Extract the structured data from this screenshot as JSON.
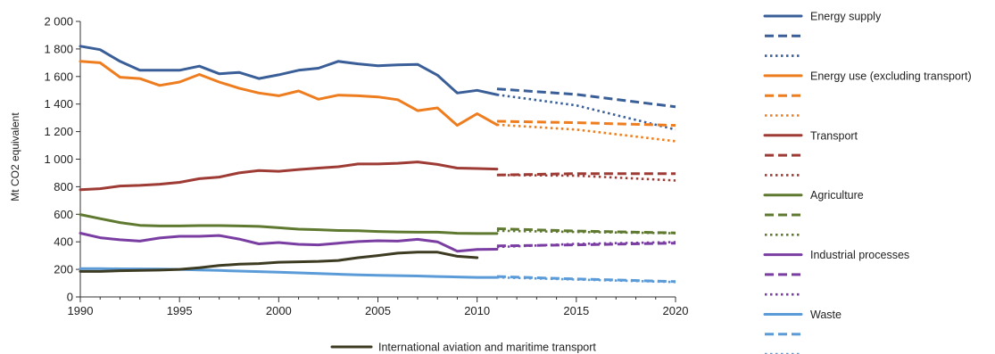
{
  "chart_data": {
    "type": "line",
    "title": "",
    "xlabel": "",
    "ylabel": "Mt CO2 equivalent",
    "xlim": [
      1990,
      2020
    ],
    "ylim": [
      0,
      2000
    ],
    "x_ticks": [
      "1990",
      "1995",
      "2000",
      "2005",
      "2010",
      "2015",
      "2020"
    ],
    "y_ticks": [
      "0",
      "200",
      "400",
      "600",
      "800",
      "1 000",
      "1 200",
      "1 400",
      "1 600",
      "1 800",
      "2 000"
    ],
    "colors": {
      "energy_supply": "#3a5f98",
      "energy_use": "#ee7d1f",
      "transport": "#9e3b35",
      "agriculture": "#5f7a30",
      "industrial": "#7a3ea2",
      "waste": "#5b9bd8",
      "aviation": "#3d3b22"
    },
    "series": [
      {
        "name": "Energy supply",
        "key": "energy_supply",
        "style": "solid",
        "x": [
          1990,
          1991,
          1992,
          1993,
          1994,
          1995,
          1996,
          1997,
          1998,
          1999,
          2000,
          2001,
          2002,
          2003,
          2004,
          2005,
          2006,
          2007,
          2008,
          2009,
          2010,
          2011
        ],
        "values": [
          1820,
          1795,
          1710,
          1645,
          1645,
          1645,
          1675,
          1620,
          1630,
          1585,
          1612,
          1645,
          1660,
          1710,
          1692,
          1678,
          1685,
          1688,
          1610,
          1480,
          1500,
          1468
        ]
      },
      {
        "name": "",
        "key": "energy_supply",
        "style": "dashed",
        "x": [
          2011,
          2015,
          2020
        ],
        "values": [
          1510,
          1470,
          1380
        ]
      },
      {
        "name": "",
        "key": "energy_supply",
        "style": "dotted",
        "x": [
          2011,
          2015,
          2020
        ],
        "values": [
          1468,
          1390,
          1215
        ]
      },
      {
        "name": "Energy use (excluding transport)",
        "key": "energy_use",
        "style": "solid",
        "x": [
          1990,
          1991,
          1992,
          1993,
          1994,
          1995,
          1996,
          1997,
          1998,
          1999,
          2000,
          2001,
          2002,
          2003,
          2004,
          2005,
          2006,
          2007,
          2008,
          2009,
          2010,
          2011
        ],
        "values": [
          1710,
          1700,
          1595,
          1585,
          1535,
          1560,
          1615,
          1560,
          1515,
          1480,
          1460,
          1495,
          1435,
          1465,
          1460,
          1452,
          1432,
          1352,
          1372,
          1245,
          1330,
          1250
        ]
      },
      {
        "name": "",
        "key": "energy_use",
        "style": "dashed",
        "x": [
          2011,
          2015,
          2020
        ],
        "values": [
          1275,
          1265,
          1245
        ]
      },
      {
        "name": "",
        "key": "energy_use",
        "style": "dotted",
        "x": [
          2011,
          2015,
          2020
        ],
        "values": [
          1250,
          1215,
          1130
        ]
      },
      {
        "name": "Transport",
        "key": "transport",
        "style": "solid",
        "x": [
          1990,
          1991,
          1992,
          1993,
          1994,
          1995,
          1996,
          1997,
          1998,
          1999,
          2000,
          2001,
          2002,
          2003,
          2004,
          2005,
          2006,
          2007,
          2008,
          2009,
          2010,
          2011
        ],
        "values": [
          778,
          786,
          805,
          810,
          818,
          832,
          858,
          870,
          900,
          918,
          912,
          925,
          935,
          945,
          965,
          965,
          970,
          980,
          962,
          935,
          932,
          928
        ]
      },
      {
        "name": "",
        "key": "transport",
        "style": "dashed",
        "x": [
          2011,
          2015,
          2020
        ],
        "values": [
          885,
          895,
          895
        ]
      },
      {
        "name": "",
        "key": "transport",
        "style": "dotted",
        "x": [
          2011,
          2015,
          2020
        ],
        "values": [
          885,
          880,
          845
        ]
      },
      {
        "name": "Agriculture",
        "key": "agriculture",
        "style": "solid",
        "x": [
          1990,
          1991,
          1992,
          1993,
          1994,
          1995,
          1996,
          1997,
          1998,
          1999,
          2000,
          2001,
          2002,
          2003,
          2004,
          2005,
          2006,
          2007,
          2008,
          2009,
          2010,
          2011
        ],
        "values": [
          598,
          568,
          540,
          520,
          515,
          515,
          518,
          518,
          515,
          512,
          502,
          492,
          488,
          482,
          480,
          475,
          472,
          470,
          470,
          462,
          460,
          460
        ]
      },
      {
        "name": "",
        "key": "agriculture",
        "style": "dashed",
        "x": [
          2011,
          2015,
          2020
        ],
        "values": [
          495,
          478,
          465
        ]
      },
      {
        "name": "",
        "key": "agriculture",
        "style": "dotted",
        "x": [
          2011,
          2015,
          2020
        ],
        "values": [
          480,
          472,
          462
        ]
      },
      {
        "name": "Industrial processes",
        "key": "industrial",
        "style": "solid",
        "x": [
          1990,
          1991,
          1992,
          1993,
          1994,
          1995,
          1996,
          1997,
          1998,
          1999,
          2000,
          2001,
          2002,
          2003,
          2004,
          2005,
          2006,
          2007,
          2008,
          2009,
          2010,
          2011
        ],
        "values": [
          463,
          430,
          415,
          405,
          428,
          440,
          440,
          446,
          420,
          385,
          395,
          382,
          378,
          390,
          402,
          408,
          405,
          418,
          400,
          332,
          345,
          346
        ]
      },
      {
        "name": "",
        "key": "industrial",
        "style": "dashed",
        "x": [
          2011,
          2015,
          2020
        ],
        "values": [
          370,
          378,
          390
        ]
      },
      {
        "name": "",
        "key": "industrial",
        "style": "dotted",
        "x": [
          2011,
          2015,
          2020
        ],
        "values": [
          362,
          385,
          398
        ]
      },
      {
        "name": "Waste",
        "key": "waste",
        "style": "solid",
        "x": [
          1990,
          1991,
          1992,
          1993,
          1994,
          1995,
          1996,
          1997,
          1998,
          1999,
          2000,
          2001,
          2002,
          2003,
          2004,
          2005,
          2006,
          2007,
          2008,
          2009,
          2010,
          2011
        ],
        "values": [
          205,
          205,
          204,
          203,
          202,
          200,
          196,
          192,
          188,
          184,
          180,
          175,
          170,
          165,
          160,
          157,
          155,
          152,
          148,
          145,
          142,
          142
        ]
      },
      {
        "name": "",
        "key": "waste",
        "style": "dashed",
        "x": [
          2011,
          2015,
          2020
        ],
        "values": [
          148,
          130,
          112
        ]
      },
      {
        "name": "",
        "key": "waste",
        "style": "dotted",
        "x": [
          2011,
          2015,
          2020
        ],
        "values": [
          142,
          126,
          108
        ]
      },
      {
        "name": "International aviation and maritime transport",
        "key": "aviation",
        "style": "solid",
        "x": [
          1990,
          1991,
          1992,
          1993,
          1994,
          1995,
          1996,
          1997,
          1998,
          1999,
          2000,
          2001,
          2002,
          2003,
          2004,
          2005,
          2006,
          2007,
          2008,
          2009,
          2010
        ],
        "values": [
          185,
          185,
          190,
          192,
          195,
          200,
          212,
          228,
          238,
          242,
          252,
          255,
          258,
          265,
          285,
          300,
          318,
          325,
          325,
          295,
          285
        ]
      }
    ],
    "legend": {
      "placement": "right",
      "entries": [
        {
          "label": "Energy supply",
          "key": "energy_supply",
          "style": "solid"
        },
        {
          "label": "",
          "key": "energy_supply",
          "style": "dashed"
        },
        {
          "label": "",
          "key": "energy_supply",
          "style": "dotted"
        },
        {
          "label": "Energy use (excluding transport)",
          "key": "energy_use",
          "style": "solid"
        },
        {
          "label": "",
          "key": "energy_use",
          "style": "dashed"
        },
        {
          "label": "",
          "key": "energy_use",
          "style": "dotted"
        },
        {
          "label": "Transport",
          "key": "transport",
          "style": "solid"
        },
        {
          "label": "",
          "key": "transport",
          "style": "dashed"
        },
        {
          "label": "",
          "key": "transport",
          "style": "dotted"
        },
        {
          "label": "Agriculture",
          "key": "agriculture",
          "style": "solid"
        },
        {
          "label": "",
          "key": "agriculture",
          "style": "dashed"
        },
        {
          "label": "",
          "key": "agriculture",
          "style": "dotted"
        },
        {
          "label": "Industrial processes",
          "key": "industrial",
          "style": "solid"
        },
        {
          "label": "",
          "key": "industrial",
          "style": "dashed"
        },
        {
          "label": "",
          "key": "industrial",
          "style": "dotted"
        },
        {
          "label": "Waste",
          "key": "waste",
          "style": "solid"
        },
        {
          "label": "",
          "key": "waste",
          "style": "dashed"
        },
        {
          "label": "",
          "key": "waste",
          "style": "dotted"
        }
      ],
      "bottom_entry": {
        "label": "International aviation and maritime transport",
        "key": "aviation",
        "style": "solid"
      }
    },
    "grid": false
  }
}
